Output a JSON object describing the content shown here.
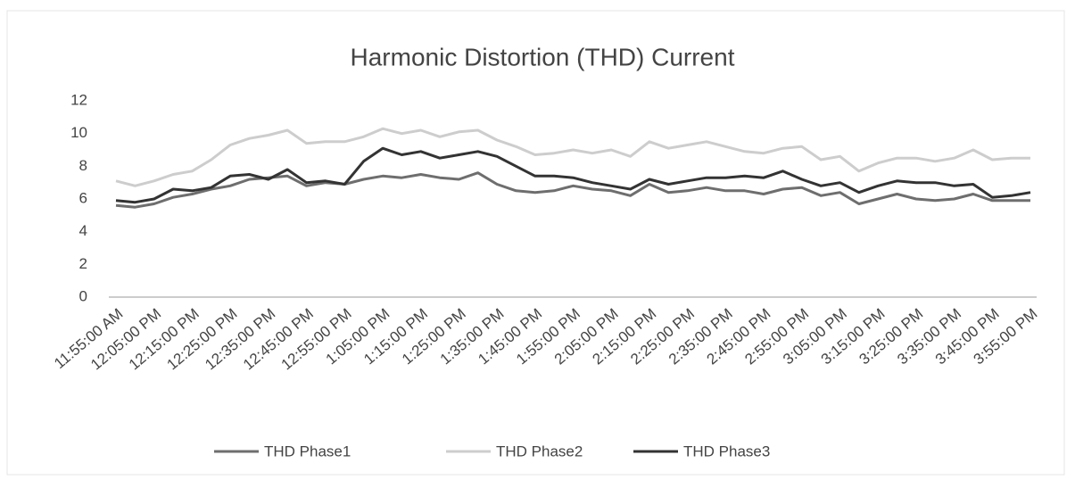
{
  "chart_data": {
    "type": "line",
    "title": "Harmonic Distortion (THD) Current",
    "categories": [
      "11:55:00 AM",
      null,
      "12:05:00 PM",
      null,
      "12:15:00 PM",
      null,
      "12:25:00 PM",
      null,
      "12:35:00 PM",
      null,
      "12:45:00 PM",
      null,
      "12:55:00 PM",
      null,
      "1:05:00 PM",
      null,
      "1:15:00 PM",
      null,
      "1:25:00 PM",
      null,
      "1:35:00 PM",
      null,
      "1:45:00 PM",
      null,
      "1:55:00 PM",
      null,
      "2:05:00 PM",
      null,
      "2:15:00 PM",
      null,
      "2:25:00 PM",
      null,
      "2:35:00 PM",
      null,
      "2:45:00 PM",
      null,
      "2:55:00 PM",
      null,
      "3:05:00 PM",
      null,
      "3:15:00 PM",
      null,
      "3:25:00 PM",
      null,
      "3:35:00 PM",
      null,
      "3:45:00 PM",
      null,
      "3:55:00 PM"
    ],
    "series": [
      {
        "name": "THD Phase1",
        "color": "#6e6e6e",
        "values": [
          5.6,
          5.5,
          5.7,
          6.1,
          6.3,
          6.6,
          6.8,
          7.2,
          7.3,
          7.4,
          6.8,
          7.0,
          6.9,
          7.2,
          7.4,
          7.3,
          7.5,
          7.3,
          7.2,
          7.6,
          6.9,
          6.5,
          6.4,
          6.5,
          6.8,
          6.6,
          6.5,
          6.2,
          6.9,
          6.4,
          6.5,
          6.7,
          6.5,
          6.5,
          6.3,
          6.6,
          6.7,
          6.2,
          6.4,
          5.7,
          6.0,
          6.3,
          6.0,
          5.9,
          6.0,
          6.3,
          5.9,
          5.9,
          5.9
        ]
      },
      {
        "name": "THD Phase2",
        "color": "#cdcdcd",
        "values": [
          7.1,
          6.8,
          7.1,
          7.5,
          7.7,
          8.4,
          9.3,
          9.7,
          9.9,
          10.2,
          9.4,
          9.5,
          9.5,
          9.8,
          10.3,
          10.0,
          10.2,
          9.8,
          10.1,
          10.2,
          9.6,
          9.2,
          8.7,
          8.8,
          9.0,
          8.8,
          9.0,
          8.6,
          9.5,
          9.1,
          9.3,
          9.5,
          9.2,
          8.9,
          8.8,
          9.1,
          9.2,
          8.4,
          8.6,
          7.7,
          8.2,
          8.5,
          8.5,
          8.3,
          8.5,
          9.0,
          8.4,
          8.5,
          8.5
        ]
      },
      {
        "name": "THD Phase3",
        "color": "#333333",
        "values": [
          5.9,
          5.8,
          6.0,
          6.6,
          6.5,
          6.7,
          7.4,
          7.5,
          7.2,
          7.8,
          7.0,
          7.1,
          6.9,
          8.3,
          9.1,
          8.7,
          8.9,
          8.5,
          8.7,
          8.9,
          8.6,
          8.0,
          7.4,
          7.4,
          7.3,
          7.0,
          6.8,
          6.6,
          7.2,
          6.9,
          7.1,
          7.3,
          7.3,
          7.4,
          7.3,
          7.7,
          7.2,
          6.8,
          7.0,
          6.4,
          6.8,
          7.1,
          7.0,
          7.0,
          6.8,
          6.9,
          6.1,
          6.2,
          6.4
        ]
      }
    ],
    "ylim": [
      0,
      12
    ],
    "yticks": [
      0,
      2,
      4,
      6,
      8,
      10,
      12
    ],
    "grid": false,
    "legend": "bottom"
  }
}
